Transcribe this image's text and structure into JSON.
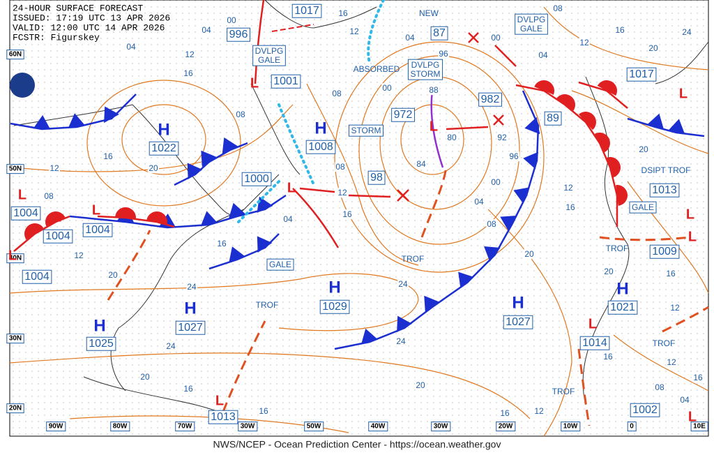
{
  "header": {
    "lines": [
      "24-HOUR SURFACE FORECAST",
      "ISSUED: 17:19 UTC 13 APR 2026",
      "VALID: 12:00 UTC 14 APR 2026",
      "FCSTR: Figurskey"
    ]
  },
  "lat_labels": [
    "60N",
    "50N",
    "40N",
    "30N",
    "20N"
  ],
  "lon_labels": [
    "90W",
    "80W",
    "70W",
    "30W",
    "50W",
    "40W",
    "30W",
    "20W",
    "10W",
    "0",
    "10E"
  ],
  "centers": [
    {
      "symbol": "H",
      "pressure": "1022"
    },
    {
      "symbol": "H",
      "pressure": "1008"
    },
    {
      "symbol": "H",
      "pressure": "1029"
    },
    {
      "symbol": "H",
      "pressure": "1027"
    },
    {
      "symbol": "H",
      "pressure": "1025"
    },
    {
      "symbol": "H",
      "pressure": "1027"
    },
    {
      "symbol": "H",
      "pressure": "1021"
    },
    {
      "symbol": "L",
      "pressure": "1001"
    },
    {
      "symbol": "L",
      "pressure": "1000"
    },
    {
      "symbol": "L",
      "pressure": "1004"
    },
    {
      "symbol": "L",
      "pressure": "1004"
    },
    {
      "symbol": "L",
      "pressure": "1004"
    },
    {
      "symbol": "L",
      "pressure": "1004"
    },
    {
      "symbol": "L",
      "pressure": "972"
    },
    {
      "symbol": "L",
      "pressure": "1017"
    },
    {
      "symbol": "L",
      "pressure": "1014"
    },
    {
      "symbol": "L",
      "pressure": "1013"
    },
    {
      "symbol": "L",
      "pressure": "1002"
    },
    {
      "symbol": "L",
      "pressure": "1013"
    },
    {
      "symbol": "L",
      "pressure": "1009"
    }
  ],
  "pressures": [
    "982",
    "996",
    "1017",
    "98",
    "87",
    "89"
  ],
  "labels": [
    "DVLPG GALE",
    "DVLPG STORM",
    "STORM",
    "GALE",
    "DVLPG GALE",
    "GALE",
    "NEW",
    "ABSORBED",
    "TROF",
    "TROF",
    "TROF",
    "DSIPT TROF",
    "TROF",
    "TROF"
  ],
  "isobar_labels": [
    "04",
    "00",
    "04",
    "12",
    "16",
    "08",
    "20",
    "16",
    "12",
    "08",
    "12",
    "16",
    "04",
    "20",
    "24",
    "24",
    "20",
    "16",
    "16",
    "16",
    "12",
    "08",
    "08",
    "12",
    "16",
    "04",
    "00",
    "96",
    "88",
    "80",
    "84",
    "92",
    "96",
    "00",
    "04",
    "08",
    "24",
    "24",
    "20",
    "16",
    "12",
    "20",
    "16",
    "12",
    "04",
    "00",
    "08",
    "12",
    "16",
    "20",
    "24",
    "20",
    "16",
    "20",
    "12",
    "16",
    "12",
    "16",
    "08",
    "04"
  ],
  "footer": "NWS/NCEP - Ocean Prediction Center - https://ocean.weather.gov"
}
